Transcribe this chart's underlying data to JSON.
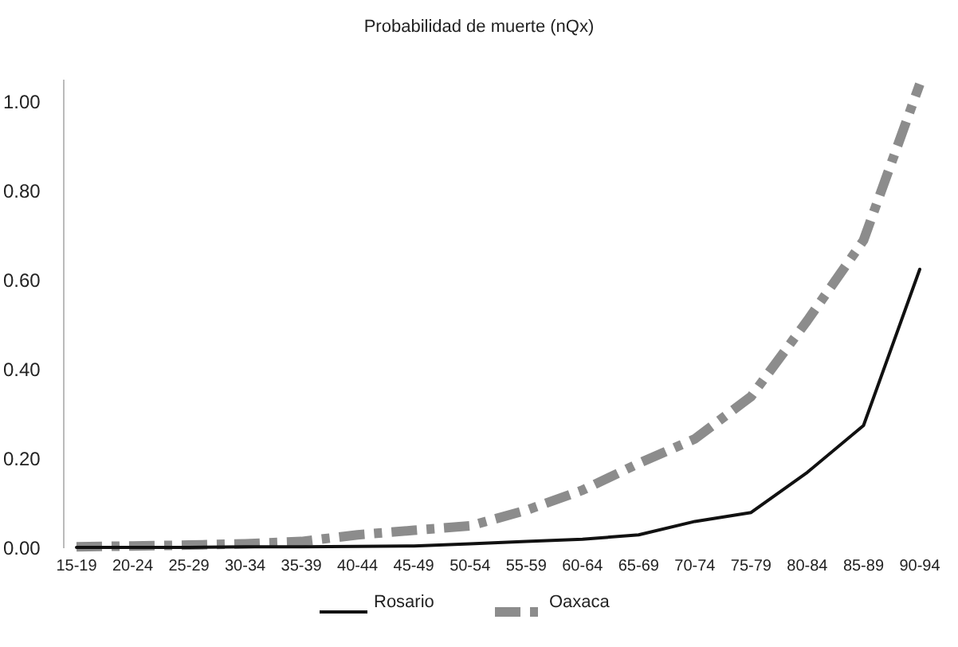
{
  "chart_data": {
    "type": "line",
    "title": "Probabilidad de muerte (nQx)",
    "categories": [
      "15-19",
      "20-24",
      "25-29",
      "30-34",
      "35-39",
      "40-44",
      "45-49",
      "50-54",
      "55-59",
      "60-64",
      "65-69",
      "70-74",
      "75-79",
      "80-84",
      "85-89",
      "90-94"
    ],
    "series": [
      {
        "name": "Rosario",
        "color": "#111111",
        "line_style": "solid",
        "values": [
          0.002,
          0.002,
          0.002,
          0.003,
          0.003,
          0.004,
          0.005,
          0.01,
          0.015,
          0.02,
          0.03,
          0.06,
          0.08,
          0.17,
          0.275,
          0.625
        ]
      },
      {
        "name": "Oaxaca",
        "color": "#8c8c8c",
        "line_style": "dashed",
        "values": [
          0.003,
          0.005,
          0.007,
          0.01,
          0.015,
          0.03,
          0.04,
          0.05,
          0.085,
          0.13,
          0.19,
          0.245,
          0.34,
          0.51,
          0.69,
          1.04
        ]
      }
    ],
    "ylim": [
      0,
      1.05
    ],
    "yticks": [
      {
        "value": 0,
        "label": "0.00"
      },
      {
        "value": 0.2,
        "label": "0.20"
      },
      {
        "value": 0.4,
        "label": "0.40"
      },
      {
        "value": 0.6,
        "label": "0.60"
      },
      {
        "value": 0.8,
        "label": "0.80"
      },
      {
        "value": 1,
        "label": "1.00"
      }
    ],
    "grid": false,
    "legend": "bottom",
    "marker": "none"
  }
}
